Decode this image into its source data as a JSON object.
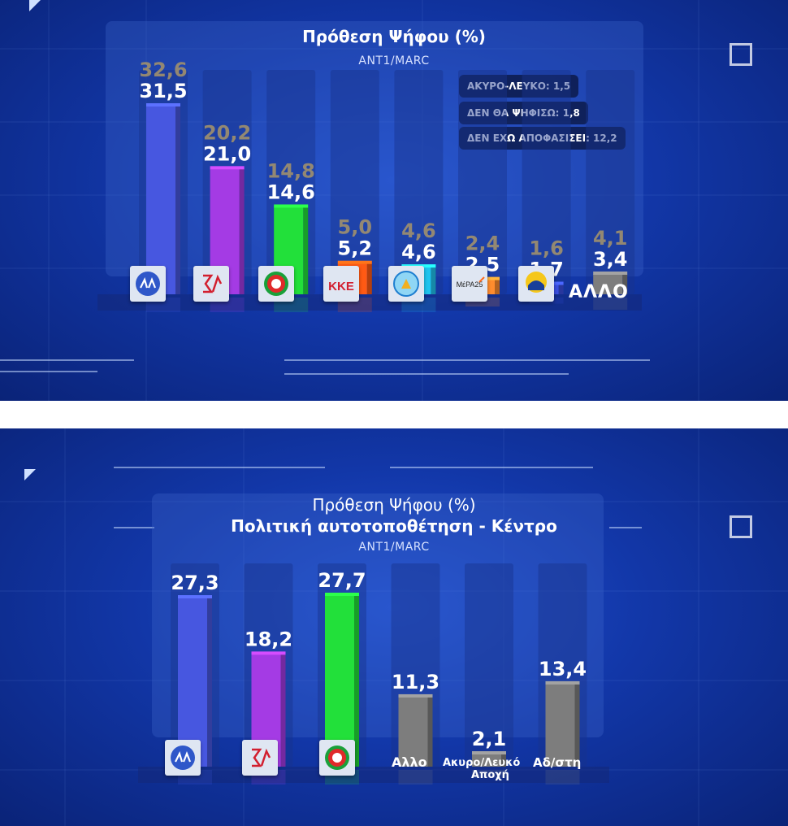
{
  "panels": [
    {
      "title": "Πρόθεση Ψήφου (%)",
      "source": "ANT1/MARC",
      "notes": [
        "ΑΚΥΡΟ-ΛΕΥΚΟ: 1,5",
        "ΔΕΝ ΘΑ ΨΗΦΙΣΩ: 1,8",
        "ΔΕΝ ΕΧΩ ΑΠΟΦΑΣΙΣΕΙ: 12,2"
      ],
      "other_label": "ΑΛΛΟ",
      "logo_texts": {
        "kke": "ΚΚΕ",
        "mera25": "ΜέΡΑ25"
      }
    },
    {
      "title": "Πρόθεση Ψήφου (%)",
      "subtitle": "Πολιτική αυτοτοποθέτηση - Κέντρο",
      "source": "ANT1/MARC",
      "labels": [
        "Αλλο",
        "Ακυρο/Λευκό",
        "Αποχή",
        "Αδ/στη"
      ]
    }
  ],
  "chart_data": [
    {
      "type": "bar",
      "title": "Πρόθεση Ψήφου (%)",
      "categories": [
        "ΝΔ",
        "ΣΥΡΙΖΑ",
        "ΠΑΣΟΚ-ΚΙΝΑΛ",
        "ΚΚΕ",
        "Ελληνική Λύση",
        "ΜέΡΑ25",
        "Ελληνες",
        "ΑΛΛΟ"
      ],
      "series": [
        {
          "values": [
            31.5,
            21.0,
            14.6,
            5.2,
            4.6,
            2.5,
            1.7,
            3.4
          ],
          "value_labels": [
            "31,5",
            "21,0",
            "14,6",
            "5,2",
            "4,6",
            "2,5",
            "1,7",
            "3,4"
          ]
        },
        {
          "values": [
            32.6,
            20.2,
            14.8,
            5.0,
            4.6,
            2.4,
            1.6,
            4.1
          ],
          "value_labels": [
            "32,6",
            "20,2",
            "14,8",
            "5,0",
            "4,6",
            "2,4",
            "1,6",
            "4,1"
          ]
        }
      ],
      "bar_colors": [
        "#4757e0",
        "#a43be4",
        "#22e03a",
        "#ff5a14",
        "#1fc4ee",
        "#ff8c2e",
        "#3a4fe0",
        "#7d7d7d"
      ],
      "ylim": [
        0,
        35
      ],
      "notes": {
        "Άκυρο-Λευκό": 1.5,
        "Δεν θα ψηφίσω": 1.8,
        "Δεν έχω αποφασίσει": 12.2
      }
    },
    {
      "type": "bar",
      "title": "Πρόθεση Ψήφου (%)",
      "subtitle": "Πολιτική αυτοτοποθέτηση - Κέντρο",
      "categories": [
        "ΝΔ",
        "ΣΥΡΙΖΑ",
        "ΠΑΣΟΚ-ΚΙΝΑΛ",
        "Αλλο",
        "Ακυρο/Λευκό Αποχή",
        "Αδ/στη"
      ],
      "values": [
        27.3,
        18.2,
        27.7,
        11.3,
        2.1,
        13.4
      ],
      "value_labels": [
        "27,3",
        "18,2",
        "27,7",
        "11,3",
        "2,1",
        "13,4"
      ],
      "bar_colors": [
        "#4757e0",
        "#a43be4",
        "#22e03a",
        "#7d7d7d",
        "#7d7d7d",
        "#7d7d7d"
      ],
      "ylim": [
        0,
        30
      ]
    }
  ]
}
